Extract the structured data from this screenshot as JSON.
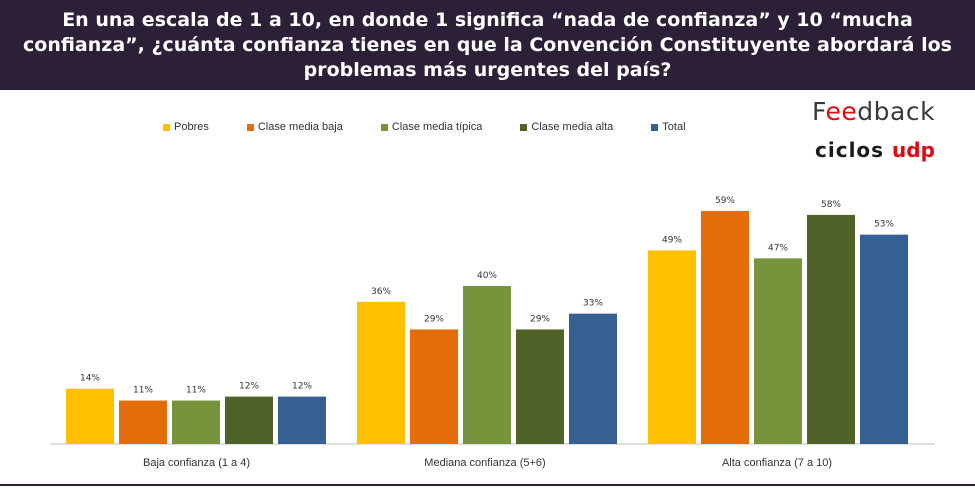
{
  "header": {
    "title": "En una escala de 1 a 10, en donde 1 significa “nada de confianza” y 10 “mucha confianza”, ¿cuánta confianza tienes en que la Convención Constituyente abordará los problemas más urgentes del país?"
  },
  "logos": {
    "feedback_prefix": "F",
    "feedback_accent": "ee",
    "feedback_suffix": "dback",
    "ciclos": "ciclos",
    "udp": "udp"
  },
  "chart_data": {
    "type": "bar",
    "title": "En una escala de 1 a 10, en donde 1 significa “nada de confianza” y 10 “mucha confianza”, ¿cuánta confianza tienes en que la Convención Constituyente abordará los problemas más urgentes del país?",
    "categories": [
      "Baja confianza (1 a 4)",
      "Mediana confianza (5+6)",
      "Alta confianza (7 a 10)"
    ],
    "series": [
      {
        "name": "Pobres",
        "color": "#ffc000",
        "values": [
          14,
          36,
          49
        ],
        "labels": [
          "14%",
          "36%",
          "49%"
        ]
      },
      {
        "name": "Clase media baja",
        "color": "#e46c0a",
        "values": [
          11,
          29,
          59
        ],
        "labels": [
          "11%",
          "29%",
          "59%"
        ]
      },
      {
        "name": "Clase media típica",
        "color": "#77933c",
        "values": [
          11,
          40,
          47
        ],
        "labels": [
          "11%",
          "40%",
          "47%"
        ]
      },
      {
        "name": "Clase media alta",
        "color": "#4f6228",
        "values": [
          12,
          29,
          58
        ],
        "labels": [
          "12%",
          "29%",
          "58%"
        ]
      },
      {
        "name": "Total",
        "color": "#376092",
        "values": [
          12,
          33,
          53
        ],
        "labels": [
          "12%",
          "33%",
          "53%"
        ]
      }
    ],
    "ylim": [
      0,
      65
    ],
    "grid": false,
    "legend_position": "top"
  }
}
